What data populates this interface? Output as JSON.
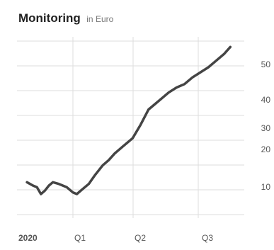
{
  "title": "Monitoring",
  "subtitle": "in Euro",
  "chart_data": {
    "type": "line",
    "title": "Monitoring",
    "subtitle": "in Euro",
    "xlabel": "",
    "ylabel": "",
    "grid": true,
    "line_color": "#444444",
    "grid_color": "#dddddd",
    "x_ticks": [
      "2020",
      "Q1",
      "Q2",
      "Q3"
    ],
    "y_ticks": [
      "50",
      "40",
      "30",
      "20",
      "10"
    ],
    "x": [
      0,
      0.3,
      0.5,
      0.7,
      0.9,
      1.1,
      1.3,
      1.6,
      2,
      2.3,
      2.5,
      2.8,
      3.1,
      3.4,
      3.8,
      4.1,
      4.4,
      4.8,
      5.3,
      5.7,
      6.1,
      6.5,
      6.8,
      7.1,
      7.5,
      7.9,
      8.3,
      8.7,
      9.1,
      9.5,
      9.9,
      10.2
    ],
    "y": [
      13,
      12,
      11.5,
      9.5,
      10.5,
      12,
      13,
      12.5,
      11.5,
      10,
      9.5,
      11,
      12.5,
      15,
      18,
      19.5,
      21.5,
      23.5,
      26,
      30,
      34.5,
      36.5,
      38,
      39.5,
      41,
      42,
      44,
      45.5,
      47,
      49,
      51,
      53
    ],
    "xlim": [
      -0.5,
      10.9
    ],
    "ylim": [
      3,
      56
    ]
  }
}
